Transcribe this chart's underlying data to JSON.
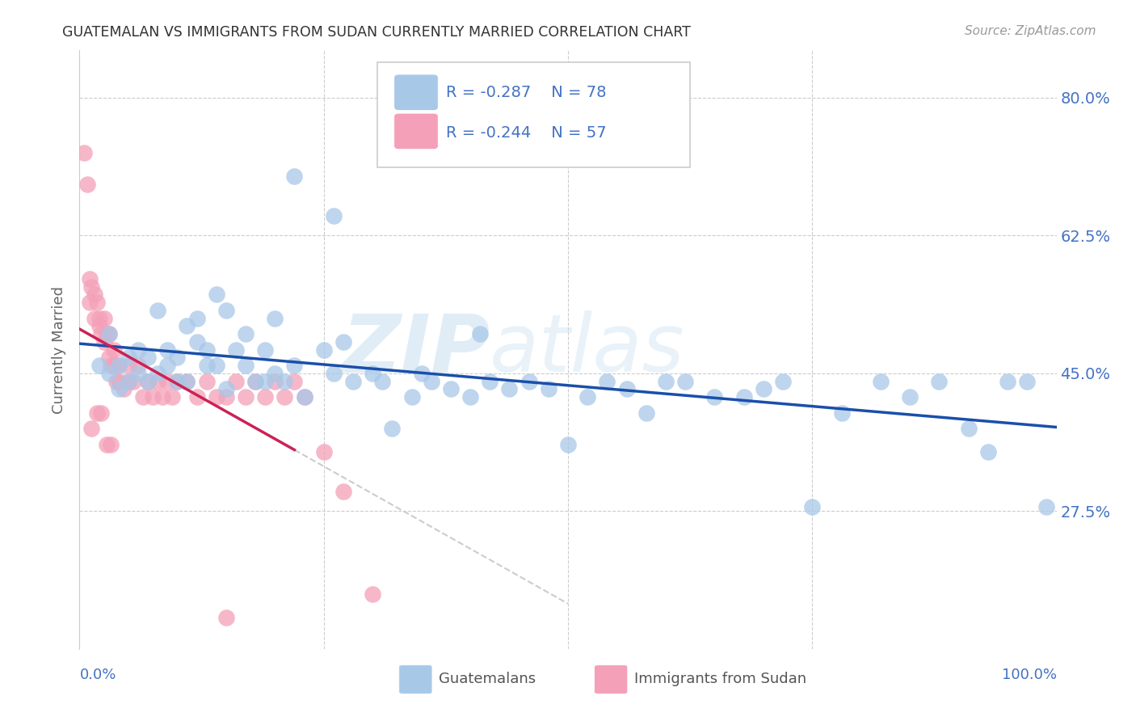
{
  "title": "GUATEMALAN VS IMMIGRANTS FROM SUDAN CURRENTLY MARRIED CORRELATION CHART",
  "source": "Source: ZipAtlas.com",
  "ylabel": "Currently Married",
  "yticks": [
    0.275,
    0.45,
    0.625,
    0.8
  ],
  "ytick_labels": [
    "27.5%",
    "45.0%",
    "62.5%",
    "80.0%"
  ],
  "xlim": [
    0.0,
    1.0
  ],
  "ylim": [
    0.1,
    0.86
  ],
  "legend_r1": "-0.287",
  "legend_n1": "78",
  "legend_r2": "-0.244",
  "legend_n2": "57",
  "color_blue": "#a8c8e8",
  "color_pink": "#f4a0b8",
  "color_blue_text": "#4472c4",
  "color_line_blue": "#1a4faa",
  "color_line_pink": "#cc2255",
  "color_line_gray_dashed": "#cccccc",
  "watermark_zip": "ZIP",
  "watermark_atlas": "atlas",
  "blue_x": [
    0.02,
    0.03,
    0.04,
    0.05,
    0.06,
    0.07,
    0.08,
    0.09,
    0.1,
    0.11,
    0.12,
    0.13,
    0.14,
    0.15,
    0.16,
    0.17,
    0.18,
    0.19,
    0.2,
    0.21,
    0.22,
    0.23,
    0.25,
    0.26,
    0.27,
    0.28,
    0.3,
    0.31,
    0.32,
    0.34,
    0.35,
    0.36,
    0.38,
    0.4,
    0.41,
    0.42,
    0.44,
    0.46,
    0.48,
    0.5,
    0.52,
    0.54,
    0.56,
    0.58,
    0.6,
    0.62,
    0.65,
    0.68,
    0.7,
    0.72,
    0.75,
    0.78,
    0.82,
    0.85,
    0.88,
    0.91,
    0.93,
    0.95,
    0.97,
    0.99,
    0.07,
    0.08,
    0.09,
    0.1,
    0.11,
    0.12,
    0.13,
    0.22,
    0.26,
    0.06,
    0.05,
    0.04,
    0.03,
    0.14,
    0.15,
    0.17,
    0.19,
    0.2
  ],
  "blue_y": [
    0.46,
    0.5,
    0.46,
    0.44,
    0.45,
    0.44,
    0.45,
    0.48,
    0.44,
    0.51,
    0.49,
    0.48,
    0.55,
    0.43,
    0.48,
    0.5,
    0.44,
    0.48,
    0.52,
    0.44,
    0.46,
    0.42,
    0.48,
    0.45,
    0.49,
    0.44,
    0.45,
    0.44,
    0.38,
    0.42,
    0.45,
    0.44,
    0.43,
    0.42,
    0.5,
    0.44,
    0.43,
    0.44,
    0.43,
    0.36,
    0.42,
    0.44,
    0.43,
    0.4,
    0.44,
    0.44,
    0.42,
    0.42,
    0.43,
    0.44,
    0.28,
    0.4,
    0.44,
    0.42,
    0.44,
    0.38,
    0.35,
    0.44,
    0.44,
    0.28,
    0.47,
    0.53,
    0.46,
    0.47,
    0.44,
    0.52,
    0.46,
    0.7,
    0.65,
    0.48,
    0.47,
    0.43,
    0.45,
    0.46,
    0.53,
    0.46,
    0.44,
    0.45
  ],
  "pink_x": [
    0.005,
    0.008,
    0.01,
    0.01,
    0.012,
    0.015,
    0.015,
    0.018,
    0.02,
    0.02,
    0.022,
    0.025,
    0.025,
    0.028,
    0.03,
    0.03,
    0.032,
    0.035,
    0.035,
    0.038,
    0.04,
    0.04,
    0.045,
    0.05,
    0.05,
    0.055,
    0.06,
    0.065,
    0.07,
    0.075,
    0.08,
    0.085,
    0.09,
    0.095,
    0.1,
    0.11,
    0.12,
    0.13,
    0.14,
    0.15,
    0.16,
    0.17,
    0.18,
    0.19,
    0.2,
    0.21,
    0.22,
    0.23,
    0.25,
    0.27,
    0.3,
    0.012,
    0.018,
    0.022,
    0.028,
    0.032,
    0.15
  ],
  "pink_y": [
    0.73,
    0.69,
    0.57,
    0.54,
    0.56,
    0.55,
    0.52,
    0.54,
    0.51,
    0.52,
    0.5,
    0.49,
    0.52,
    0.5,
    0.47,
    0.5,
    0.46,
    0.48,
    0.46,
    0.44,
    0.46,
    0.44,
    0.43,
    0.46,
    0.44,
    0.44,
    0.46,
    0.42,
    0.44,
    0.42,
    0.44,
    0.42,
    0.44,
    0.42,
    0.44,
    0.44,
    0.42,
    0.44,
    0.42,
    0.42,
    0.44,
    0.42,
    0.44,
    0.42,
    0.44,
    0.42,
    0.44,
    0.42,
    0.35,
    0.3,
    0.17,
    0.38,
    0.4,
    0.4,
    0.36,
    0.36,
    0.14
  ]
}
